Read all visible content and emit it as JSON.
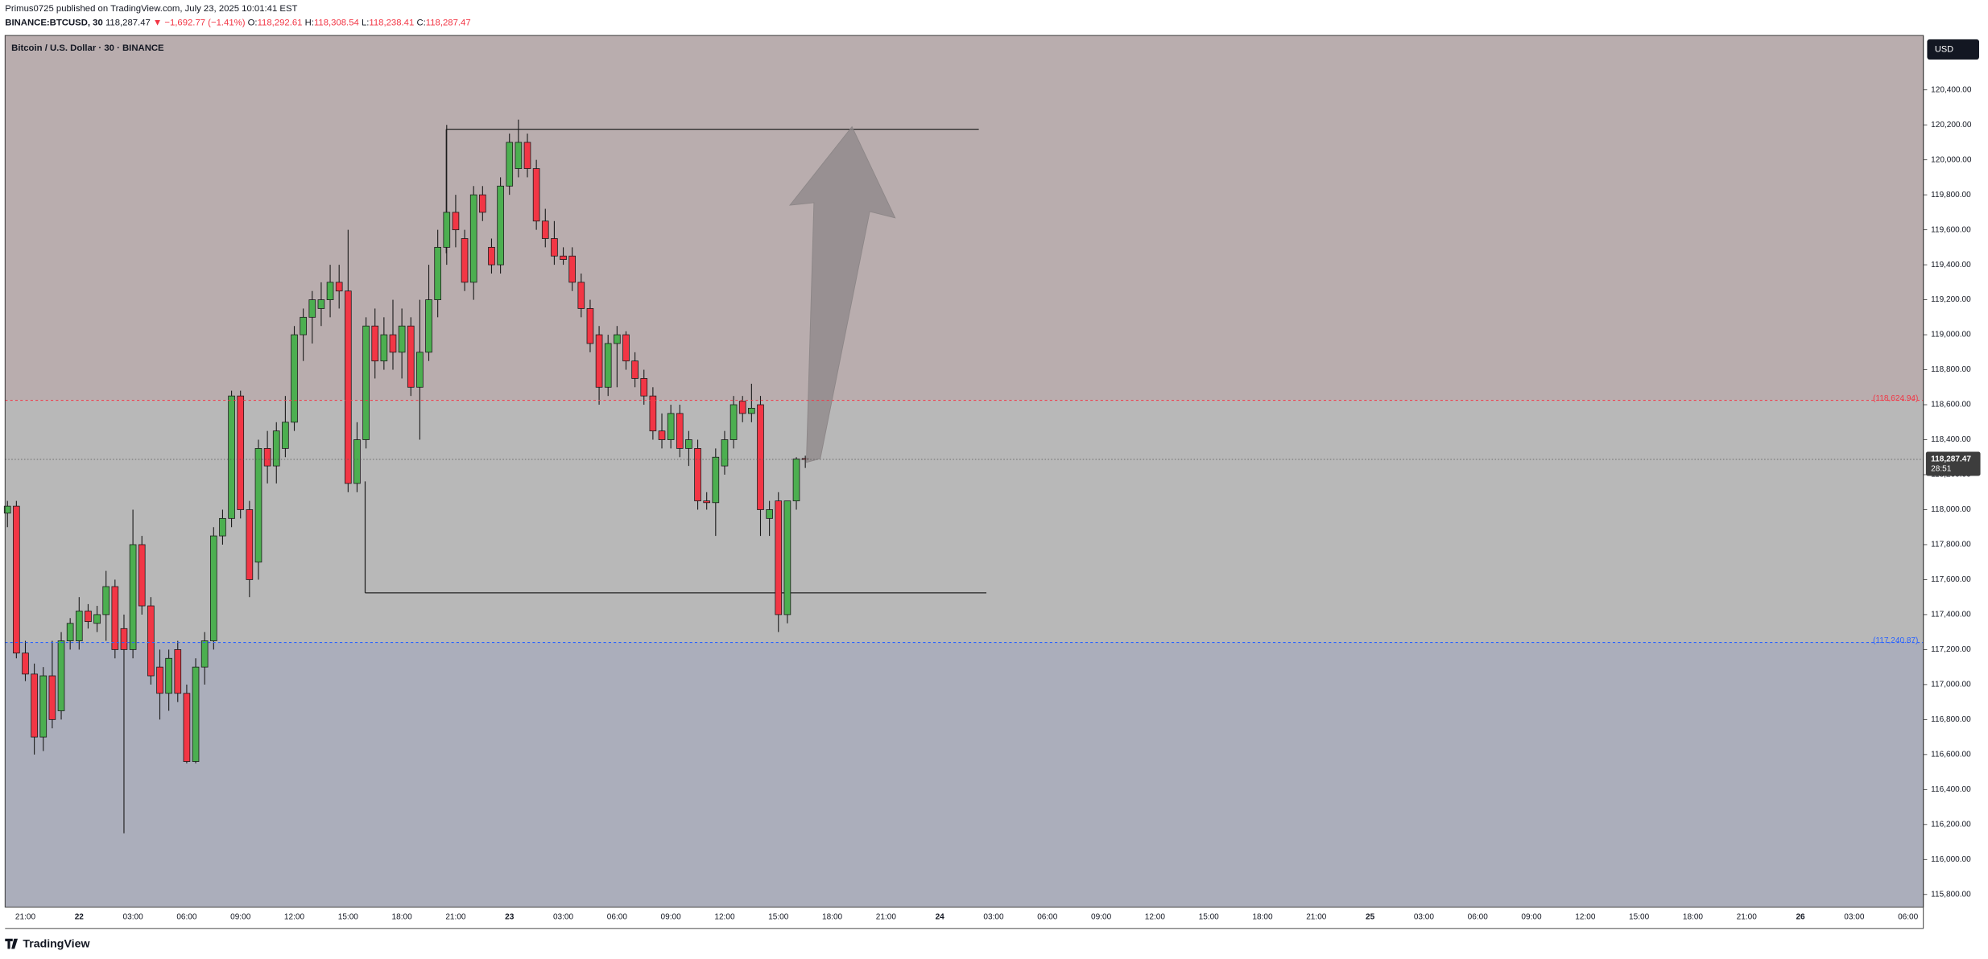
{
  "header": {
    "publisher": "Primus0725 published on TradingView.com, July 23, 2025 10:01:41 EST",
    "symbol": "BINANCE:BTCUSD, 30",
    "last": "118,287.47",
    "arrow": "▼",
    "change": "−1,692.77 (−1.41%)",
    "ohlc": [
      {
        "key": "O:",
        "value": "118,292.61"
      },
      {
        "key": "H:",
        "value": "118,308.54"
      },
      {
        "key": "L:",
        "value": "118,238.41"
      },
      {
        "key": "C:",
        "value": "118,287.47"
      }
    ]
  },
  "chart_data": {
    "type": "candlestick",
    "title": "Bitcoin / U.S. Dollar · 30 · BINANCE",
    "currency": "USD",
    "up_color": "#4caf50",
    "down_color": "#f23645",
    "background_colors": [
      "#b9adae",
      "#b8b8b8",
      "#abaebb"
    ],
    "open": [
      117980,
      118020,
      117180,
      117060,
      116700,
      117050,
      116850,
      117250,
      117250,
      117420,
      117350,
      117400,
      117560,
      117320,
      117200,
      117800,
      117450,
      117100,
      116950,
      117200,
      116950,
      116560,
      117100,
      117250,
      117850,
      117950,
      118650,
      118000,
      117700,
      118350,
      118250,
      118350,
      118500,
      119000,
      119100,
      119150,
      119200,
      119300,
      119250,
      118150,
      118400,
      119050,
      118850,
      119000,
      118900,
      119050,
      118700,
      118900,
      119200,
      119500,
      119700,
      119550,
      119300,
      119800,
      119500,
      119400,
      119850,
      119950,
      120100,
      119950,
      119650,
      119550,
      119450,
      119450,
      119300,
      119150,
      119000,
      118700,
      118950,
      119000,
      118850,
      118750,
      118650,
      118450,
      118400,
      118550,
      118350,
      118350,
      118050,
      118040,
      118250,
      118400,
      118620,
      118550,
      118600,
      117950,
      118050,
      117400,
      118050,
      118292.61
    ],
    "high": [
      118050,
      118050,
      117250,
      117120,
      117100,
      117250,
      117300,
      117380,
      117500,
      117460,
      117450,
      117650,
      117600,
      117400,
      118000,
      117850,
      117500,
      117200,
      117200,
      117250,
      117000,
      117150,
      117300,
      117900,
      118000,
      118680,
      118680,
      118050,
      118400,
      118450,
      118500,
      118650,
      119050,
      119150,
      119250,
      119300,
      119400,
      119400,
      119600,
      118500,
      119100,
      119150,
      119100,
      119200,
      119150,
      119100,
      119200,
      119400,
      119600,
      120200,
      119800,
      119600,
      119850,
      119850,
      119550,
      119900,
      120150,
      120230,
      120150,
      120000,
      119720,
      119650,
      119500,
      119500,
      119350,
      119200,
      119050,
      119000,
      119050,
      119020,
      118900,
      118800,
      118700,
      118550,
      118600,
      118600,
      118450,
      118400,
      118100,
      118350,
      118450,
      118650,
      118650,
      118720,
      118650,
      118050,
      118100,
      118050,
      118300,
      118308.54
    ],
    "low": [
      117900,
      117150,
      117020,
      116600,
      116620,
      116750,
      116800,
      117200,
      117200,
      117320,
      117300,
      117250,
      117150,
      116150,
      117150,
      117400,
      117000,
      116800,
      116850,
      116900,
      116550,
      116550,
      117000,
      117200,
      117800,
      117900,
      117950,
      117500,
      117600,
      118150,
      118150,
      118300,
      118450,
      118850,
      118950,
      119050,
      119100,
      119150,
      118100,
      118100,
      118350,
      118750,
      118800,
      118800,
      118750,
      118650,
      118400,
      118850,
      119100,
      119400,
      119500,
      119250,
      119200,
      119650,
      119350,
      119350,
      119800,
      119900,
      119900,
      119600,
      119500,
      119400,
      119400,
      119250,
      119100,
      118900,
      118600,
      118650,
      118700,
      118800,
      118700,
      118600,
      118400,
      118350,
      118350,
      118300,
      118250,
      118000,
      118000,
      117850,
      118200,
      118350,
      118500,
      118500,
      117850,
      117850,
      117300,
      117350,
      118000,
      118238.41
    ],
    "close": [
      118020,
      117180,
      117060,
      116700,
      117050,
      116800,
      117250,
      117350,
      117420,
      117360,
      117400,
      117560,
      117200,
      117200,
      117800,
      117450,
      117050,
      116950,
      117150,
      116950,
      116560,
      117100,
      117250,
      117850,
      117950,
      118650,
      118000,
      117600,
      118350,
      118250,
      118450,
      118500,
      119000,
      119100,
      119200,
      119200,
      119300,
      119250,
      118150,
      118400,
      119050,
      118850,
      119000,
      118900,
      119050,
      118700,
      118900,
      119200,
      119500,
      119700,
      119600,
      119300,
      119800,
      119700,
      119400,
      119850,
      120100,
      120100,
      119950,
      119650,
      119550,
      119450,
      119430,
      119300,
      119150,
      118950,
      118700,
      118950,
      119000,
      118850,
      118750,
      118650,
      118450,
      118400,
      118550,
      118350,
      118400,
      118050,
      118040,
      118300,
      118400,
      118600,
      118550,
      118580,
      118000,
      118000,
      117400,
      118050,
      118290,
      118287.47
    ],
    "ylim": [
      115728,
      120711
    ],
    "yticks": [
      {
        "value": 115800,
        "label": "115,800.00"
      },
      {
        "value": 116000,
        "label": "116,000.00"
      },
      {
        "value": 116200,
        "label": "116,200.00"
      },
      {
        "value": 116400,
        "label": "116,400.00"
      },
      {
        "value": 116600,
        "label": "116,600.00"
      },
      {
        "value": 116800,
        "label": "116,800.00"
      },
      {
        "value": 117000,
        "label": "117,000.00"
      },
      {
        "value": 117200,
        "label": "117,200.00"
      },
      {
        "value": 117400,
        "label": "117,400.00"
      },
      {
        "value": 117600,
        "label": "117,600.00"
      },
      {
        "value": 117800,
        "label": "117,800.00"
      },
      {
        "value": 118000,
        "label": "118,000.00"
      },
      {
        "value": 118200,
        "label": "118,200.00"
      },
      {
        "value": 118400,
        "label": "118,400.00"
      },
      {
        "value": 118600,
        "label": "118,600.00"
      },
      {
        "value": 118800,
        "label": "118,800.00"
      },
      {
        "value": 119000,
        "label": "119,000.00"
      },
      {
        "value": 119200,
        "label": "119,200.00"
      },
      {
        "value": 119400,
        "label": "119,400.00"
      },
      {
        "value": 119600,
        "label": "119,600.00"
      },
      {
        "value": 119800,
        "label": "119,800.00"
      },
      {
        "value": 120000,
        "label": "120,000.00"
      },
      {
        "value": 120200,
        "label": "120,200.00"
      },
      {
        "value": 120400,
        "label": "120,400.00"
      }
    ],
    "xticks": [
      "21:00",
      "22",
      "03:00",
      "06:00",
      "09:00",
      "12:00",
      "15:00",
      "18:00",
      "21:00",
      "23",
      "03:00",
      "06:00",
      "09:00",
      "12:00",
      "15:00",
      "18:00",
      "21:00",
      "24",
      "03:00",
      "06:00",
      "09:00",
      "12:00",
      "15:00",
      "18:00",
      "21:00",
      "25",
      "03:00",
      "06:00",
      "09:00",
      "12:00",
      "15:00",
      "18:00",
      "21:00",
      "26",
      "03:00",
      "06:00"
    ],
    "levels": [
      {
        "value": 118624.94,
        "label": "(118,624.94)",
        "color": "#f23645"
      },
      {
        "value": 117240.87,
        "label": "(117,240.87)",
        "color": "#2962ff"
      }
    ],
    "last_price": {
      "value": 118287.47,
      "label": "118,287.47",
      "countdown": "28:51"
    }
  },
  "footer": {
    "logo": "TradingView"
  }
}
